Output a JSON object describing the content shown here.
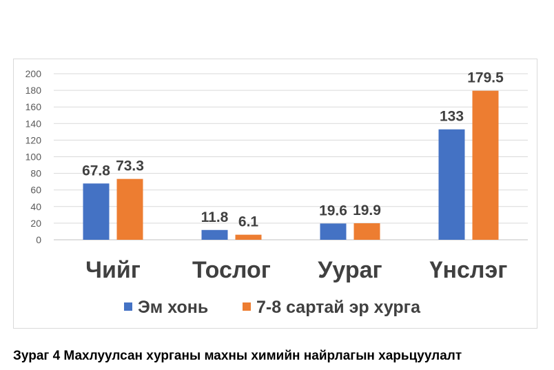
{
  "chart_data": {
    "type": "bar",
    "categories": [
      "Чийг",
      "Тослог",
      "Уураг",
      "Үнслэг"
    ],
    "series": [
      {
        "name": "Эм хонь",
        "values": [
          67.8,
          11.8,
          19.6,
          133
        ],
        "labels": [
          "67.8",
          "11.8",
          "19.6",
          "133"
        ],
        "color": "#4472c4"
      },
      {
        "name": "7-8 сартай эр хурга",
        "values": [
          73.3,
          6.1,
          19.9,
          179.5
        ],
        "labels": [
          "73.3",
          "6.1",
          "19.9",
          "179.5"
        ],
        "color": "#ed7d31"
      }
    ],
    "ylim": [
      0,
      200
    ],
    "yticks": [
      "0",
      "20",
      "40",
      "60",
      "80",
      "100",
      "120",
      "140",
      "160",
      "180",
      "200"
    ],
    "grid": true,
    "legend": "bottom",
    "title": "",
    "xlabel": "",
    "ylabel": ""
  },
  "caption": "Зураг 4 Махлуулсан хурганы махны химийн найрлагын харьцуулалт"
}
